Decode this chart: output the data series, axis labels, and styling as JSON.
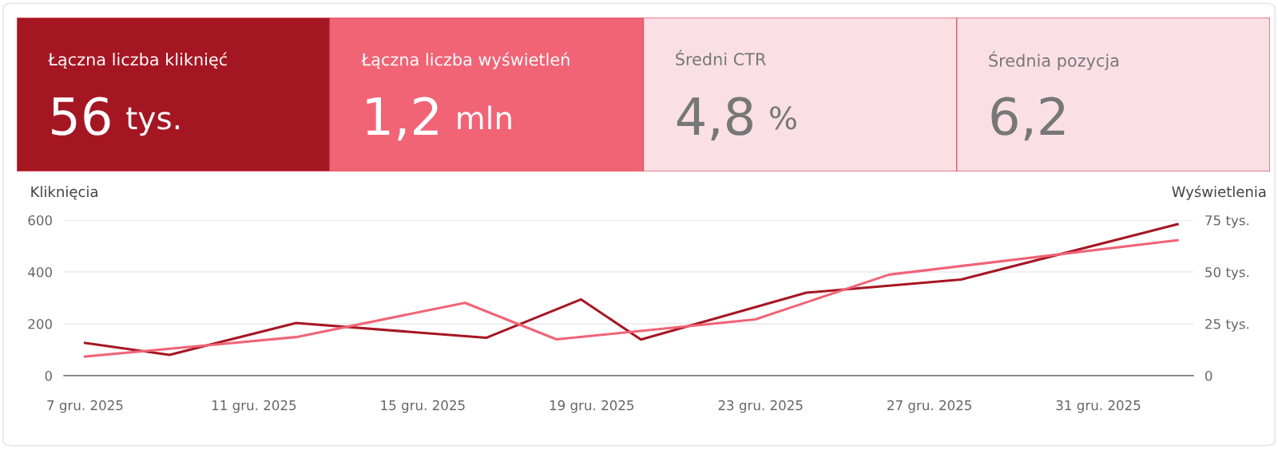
{
  "chart_data": [
    {
      "type": "other",
      "annotations": [
        "Łączna liczba kliknięć",
        "56 tys.",
        "Łączna liczba wyświetleń",
        "1,2 mln",
        "Średni CTR",
        "4,8 %",
        "Średnia pozycja",
        "6,2"
      ],
      "colors": [
        "#a51623",
        "#f06476",
        "#fae0e4",
        "#fae0e4"
      ]
    },
    {
      "type": "line",
      "ylabel": "Kliknięcia",
      "y2label": "Wyświetlenia",
      "grid": "y",
      "marker": "none",
      "line_style": "solid",
      "xlim": [
        "2025-12-06T12:00",
        "2026-01-02T06:00"
      ],
      "xticks": [
        {
          "value": "2025-12-07",
          "label": "7 gru. 2025"
        },
        {
          "value": "2025-12-11",
          "label": "11 gru. 2025"
        },
        {
          "value": "2025-12-15",
          "label": "15 gru. 2025"
        },
        {
          "value": "2025-12-19",
          "label": "19 gru. 2025"
        },
        {
          "value": "2025-12-23",
          "label": "23 gru. 2025"
        },
        {
          "value": "2025-12-27",
          "label": "27 gru. 2025"
        },
        {
          "value": "2025-12-31",
          "label": "31 gru. 2025"
        }
      ],
      "ylim": [
        0,
        600
      ],
      "yticks": [
        0,
        200,
        400,
        600
      ],
      "y2lim": [
        0,
        75
      ],
      "y2ticks": [
        0,
        {
          "value": 25,
          "label": "25 tys."
        },
        {
          "value": 50,
          "label": "50 tys."
        },
        {
          "value": 75,
          "label": "75 tys."
        }
      ],
      "series": [
        {
          "color": "#a51623",
          "x": [
            "2025-12-07",
            "2025-12-09",
            "2025-12-12",
            "2025-12-16T12:00",
            "2025-12-18T18:00",
            "2025-12-20T04:00",
            "2025-12-24T02:00",
            "2025-12-27T18:00",
            "2026-01-01T21:00"
          ],
          "values": [
            126,
            80,
            203,
            146,
            294,
            139,
            320,
            371,
            584
          ]
        },
        {
          "color": "#f06476",
          "axis": "y2",
          "x": [
            "2025-12-07",
            "2025-12-12",
            "2025-12-16",
            "2025-12-18T04:00",
            "2025-12-22T21:00",
            "2025-12-26T01:00",
            "2026-01-01T21:00"
          ],
          "values": [
            9.2,
            18.6,
            35.1,
            17.5,
            27.1,
            48.7,
            65.3
          ]
        }
      ]
    }
  ]
}
